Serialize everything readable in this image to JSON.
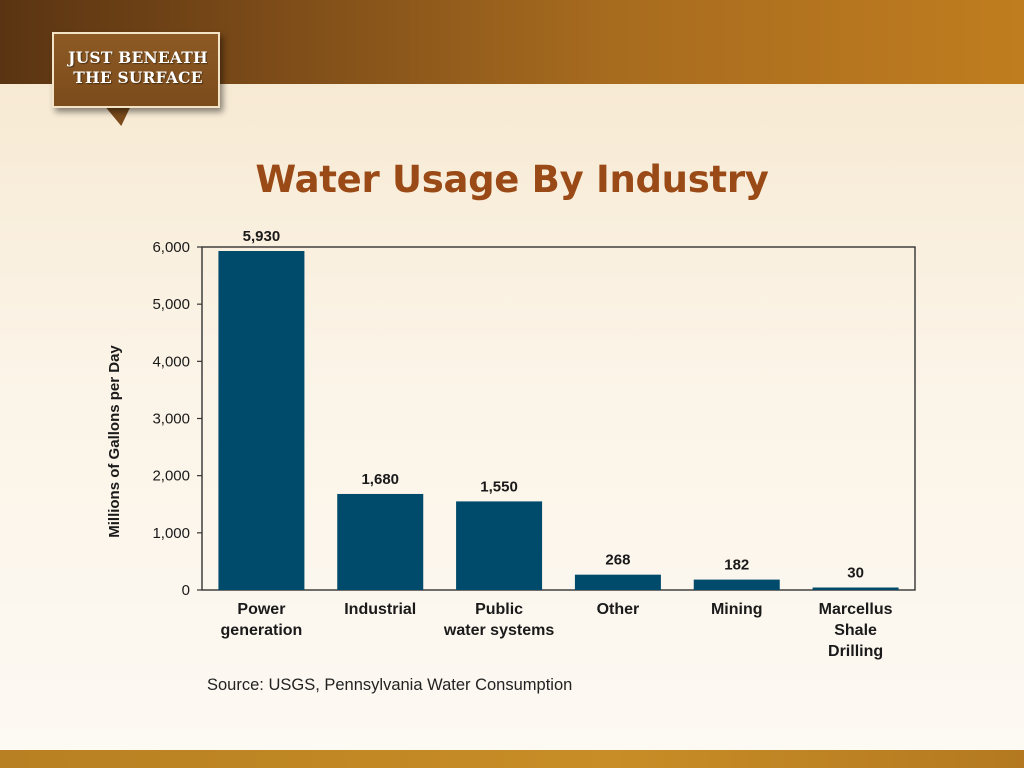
{
  "badge": {
    "lines": [
      "JUST BENEATH",
      "THE SURFACE"
    ]
  },
  "slide_title": "Water Usage By Industry",
  "source_note": "Source: USGS, Pennsylvania Water Consumption",
  "colors": {
    "bar": "#004b6b",
    "title": "#9a4a16",
    "badge": "#7b4b1b"
  },
  "chart_data": {
    "type": "bar",
    "title": "",
    "ylabel": "Millions of Gallons per Day",
    "xlabel": "",
    "ylim": [
      0,
      6000
    ],
    "yticks": [
      0,
      1000,
      2000,
      3000,
      4000,
      5000,
      6000
    ],
    "ytick_labels": [
      "0",
      "1,000",
      "2,000",
      "3,000",
      "4,000",
      "5,000",
      "6,000"
    ],
    "grid": false,
    "legend": "none",
    "categories": [
      [
        "Power",
        "generation"
      ],
      [
        "Industrial"
      ],
      [
        "Public",
        "water systems"
      ],
      [
        "Other"
      ],
      [
        "Mining"
      ],
      [
        "Marcellus",
        "Shale",
        "Drilling"
      ]
    ],
    "values": [
      5930,
      1680,
      1550,
      268,
      182,
      30
    ],
    "value_labels": [
      "5,930",
      "1,680",
      "1,550",
      "268",
      "182",
      "30"
    ]
  }
}
